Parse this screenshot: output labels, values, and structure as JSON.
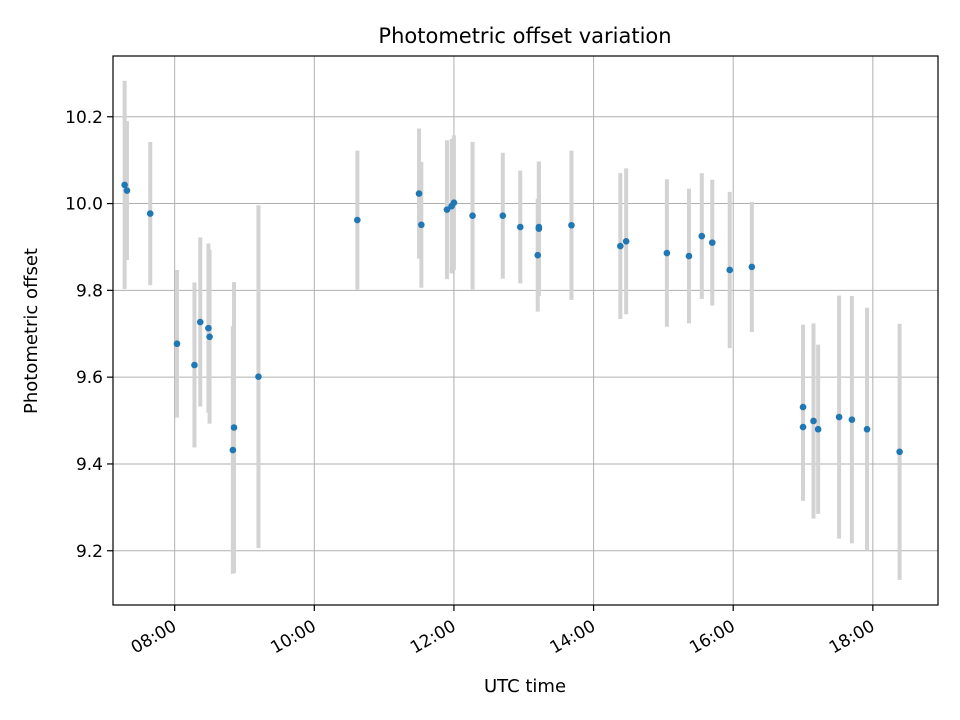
{
  "chart_data": {
    "type": "scatter",
    "title": "Photometric offset variation",
    "xlabel": "UTC time",
    "ylabel": "Photometric offset",
    "x_ticks": [
      "08:00",
      "10:00",
      "12:00",
      "14:00",
      "16:00",
      "18:00"
    ],
    "y_ticks": [
      "9.2",
      "9.4",
      "9.6",
      "9.8",
      "10.0",
      "10.2"
    ],
    "xlim": [
      "07:07",
      "18:56"
    ],
    "ylim": [
      9.075,
      10.34
    ],
    "grid": true,
    "colors": {
      "point": "#1f77b4",
      "errorbar": "#d3d3d3",
      "grid": "#b0b0b0"
    },
    "points": [
      {
        "x": "07:17",
        "y": 10.043,
        "yerr": 0.24
      },
      {
        "x": "07:19",
        "y": 10.03,
        "yerr": 0.16
      },
      {
        "x": "07:39",
        "y": 9.977,
        "yerr": 0.165
      },
      {
        "x": "08:02",
        "y": 9.677,
        "yerr": 0.17
      },
      {
        "x": "08:17",
        "y": 9.628,
        "yerr": 0.19
      },
      {
        "x": "08:22",
        "y": 9.727,
        "yerr": 0.195
      },
      {
        "x": "08:29",
        "y": 9.713,
        "yerr": 0.195
      },
      {
        "x": "08:30",
        "y": 9.693,
        "yerr": 0.2
      },
      {
        "x": "08:50",
        "y": 9.432,
        "yerr": 0.285
      },
      {
        "x": "08:51",
        "y": 9.484,
        "yerr": 0.335
      },
      {
        "x": "09:12",
        "y": 9.601,
        "yerr": 0.395
      },
      {
        "x": "10:37",
        "y": 9.962,
        "yerr": 0.16
      },
      {
        "x": "11:30",
        "y": 10.023,
        "yerr": 0.15
      },
      {
        "x": "11:32",
        "y": 9.951,
        "yerr": 0.145
      },
      {
        "x": "11:54",
        "y": 9.986,
        "yerr": 0.16
      },
      {
        "x": "11:58",
        "y": 9.994,
        "yerr": 0.155
      },
      {
        "x": "12:00",
        "y": 10.002,
        "yerr": 0.155
      },
      {
        "x": "12:16",
        "y": 9.972,
        "yerr": 0.17
      },
      {
        "x": "12:42",
        "y": 9.972,
        "yerr": 0.145
      },
      {
        "x": "12:57",
        "y": 9.946,
        "yerr": 0.13
      },
      {
        "x": "13:12",
        "y": 9.881,
        "yerr": 0.13
      },
      {
        "x": "13:13",
        "y": 9.946,
        "yerr": 0.15
      },
      {
        "x": "13:13",
        "y": 9.942,
        "yerr": 0.155
      },
      {
        "x": "13:41",
        "y": 9.95,
        "yerr": 0.172
      },
      {
        "x": "14:23",
        "y": 9.902,
        "yerr": 0.168
      },
      {
        "x": "14:28",
        "y": 9.913,
        "yerr": 0.168
      },
      {
        "x": "15:03",
        "y": 9.886,
        "yerr": 0.17
      },
      {
        "x": "15:22",
        "y": 9.879,
        "yerr": 0.155
      },
      {
        "x": "15:33",
        "y": 9.925,
        "yerr": 0.145
      },
      {
        "x": "15:42",
        "y": 9.91,
        "yerr": 0.145
      },
      {
        "x": "15:57",
        "y": 9.847,
        "yerr": 0.18
      },
      {
        "x": "16:16",
        "y": 9.854,
        "yerr": 0.15
      },
      {
        "x": "17:00",
        "y": 9.485,
        "yerr": 0.17
      },
      {
        "x": "17:00",
        "y": 9.531,
        "yerr": 0.19
      },
      {
        "x": "17:09",
        "y": 9.499,
        "yerr": 0.225
      },
      {
        "x": "17:13",
        "y": 9.48,
        "yerr": 0.195
      },
      {
        "x": "17:31",
        "y": 9.508,
        "yerr": 0.28
      },
      {
        "x": "17:42",
        "y": 9.502,
        "yerr": 0.285
      },
      {
        "x": "17:55",
        "y": 9.48,
        "yerr": 0.28
      },
      {
        "x": "18:23",
        "y": 9.428,
        "yerr": 0.295
      }
    ]
  }
}
